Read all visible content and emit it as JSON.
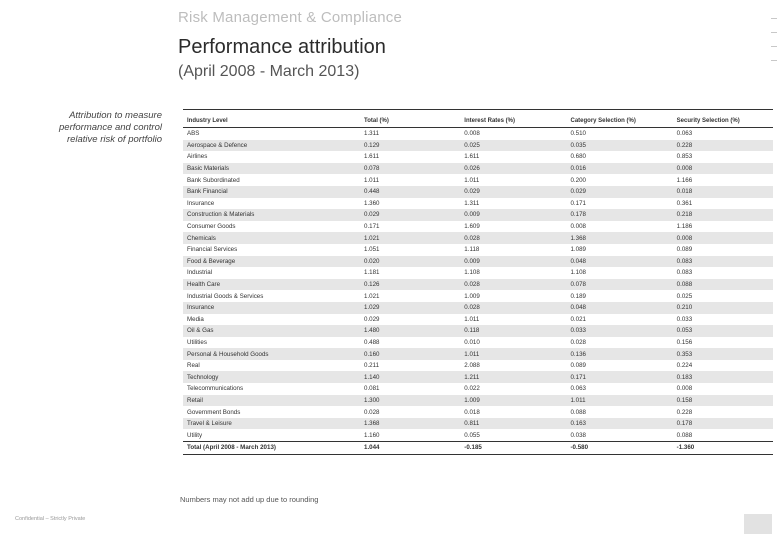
{
  "header": {
    "section": "Risk Management & Compliance",
    "title": "Performance attribution",
    "subtitle": "(April 2008 - March 2013)"
  },
  "sidebar_note": "Attribution to measure performance and control relative risk of portfolio",
  "table": {
    "columns": [
      "Industry Level",
      "Total (%)",
      "Interest Rates (%)",
      "Category Selection (%)",
      "Security Selection (%)"
    ],
    "rows": [
      [
        "ABS",
        "1.311",
        "0.008",
        "0.510",
        "0.063"
      ],
      [
        "Aerospace & Defence",
        "0.129",
        "0.025",
        "0.035",
        "0.228"
      ],
      [
        "Airlines",
        "1.611",
        "1.611",
        "0.680",
        "0.853"
      ],
      [
        "Basic Materials",
        "0.078",
        "0.026",
        "0.016",
        "0.008"
      ],
      [
        "Bank Subordinated",
        "1.011",
        "1.011",
        "0.200",
        "1.166"
      ],
      [
        "Bank Financial",
        "0.448",
        "0.029",
        "0.029",
        "0.018"
      ],
      [
        "Insurance",
        "1.360",
        "1.311",
        "0.171",
        "0.361"
      ],
      [
        "Construction & Materials",
        "0.029",
        "0.009",
        "0.178",
        "0.218"
      ],
      [
        "Consumer Goods",
        "0.171",
        "1.609",
        "0.008",
        "1.186"
      ],
      [
        "Chemicals",
        "1.021",
        "0.028",
        "1.368",
        "0.008"
      ],
      [
        "Financial Services",
        "1.051",
        "1.118",
        "1.089",
        "0.089"
      ],
      [
        "Food & Beverage",
        "0.020",
        "0.009",
        "0.048",
        "0.083"
      ],
      [
        "Industrial",
        "1.181",
        "1.108",
        "1.108",
        "0.083"
      ],
      [
        "Health Care",
        "0.126",
        "0.028",
        "0.078",
        "0.088"
      ],
      [
        "Industrial Goods & Services",
        "1.021",
        "1.009",
        "0.189",
        "0.025"
      ],
      [
        "Insurance",
        "1.029",
        "0.028",
        "0.048",
        "0.210"
      ],
      [
        "Media",
        "0.029",
        "1.011",
        "0.021",
        "0.033"
      ],
      [
        "Oil & Gas",
        "1.480",
        "0.118",
        "0.033",
        "0.053"
      ],
      [
        "Utilities",
        "0.488",
        "0.010",
        "0.028",
        "0.156"
      ],
      [
        "Personal & Household Goods",
        "0.160",
        "1.011",
        "0.136",
        "0.353"
      ],
      [
        "Real",
        "0.211",
        "2.088",
        "0.089",
        "0.224"
      ],
      [
        "Technology",
        "1.140",
        "1.211",
        "0.171",
        "0.183"
      ],
      [
        "Telecommunications",
        "0.081",
        "0.022",
        "0.063",
        "0.008"
      ],
      [
        "Retail",
        "1.300",
        "1.009",
        "1.011",
        "0.158"
      ],
      [
        "Government Bonds",
        "0.028",
        "0.018",
        "0.088",
        "0.228"
      ],
      [
        "Travel & Leisure",
        "1.368",
        "0.811",
        "0.163",
        "0.178"
      ],
      [
        "Utility",
        "1.160",
        "0.055",
        "0.038",
        "0.088"
      ]
    ],
    "total": [
      "Total (April 2008 - March 2013)",
      "1.044",
      "-0.185",
      "-0.580",
      "-1.360"
    ]
  },
  "footnote": "Numbers may not add up due to rounding",
  "page_footer": "Confidential – Strictly Private"
}
